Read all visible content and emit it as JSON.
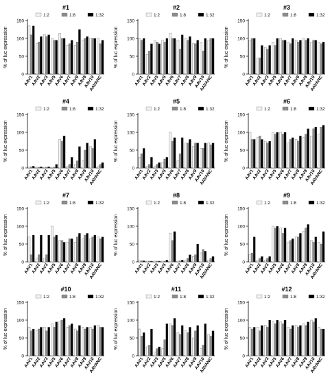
{
  "figure": {
    "ylabel": "% of luc expression",
    "legend": [
      "1:2",
      "1:8",
      "1:32"
    ],
    "series_colors": [
      "#f2f2f2",
      "#8c8c8c",
      "#000000"
    ],
    "categories": [
      "AAV1",
      "AAV2",
      "AAV3",
      "AAV5",
      "AAV6",
      "AAV7",
      "AAV8",
      "AAV9",
      "AAV10",
      "AAVANC"
    ],
    "yticks": [
      "0",
      "50",
      "100",
      "150"
    ]
  },
  "chart_data": [
    {
      "type": "bar",
      "title": "#1",
      "categories": [
        "AAV1",
        "AAV2",
        "AAV3",
        "AAV5",
        "AAV6",
        "AAV7",
        "AAV8",
        "AAV9",
        "AAV10",
        "AAVANC"
      ],
      "ylim": [
        0,
        150
      ],
      "series": [
        {
          "name": "1:2",
          "values": [
            135,
            85,
            110,
            100,
            115,
            80,
            80,
            95,
            100,
            100
          ]
        },
        {
          "name": "1:8",
          "values": [
            110,
            90,
            105,
            95,
            100,
            85,
            90,
            100,
            100,
            85
          ]
        },
        {
          "name": "1:32",
          "values": [
            135,
            105,
            110,
            95,
            100,
            95,
            125,
            105,
            100,
            95
          ]
        }
      ]
    },
    {
      "type": "bar",
      "title": "#2",
      "categories": [
        "AAV1",
        "AAV2",
        "AAV3",
        "AAV5",
        "AAV6",
        "AAV7",
        "AAV8",
        "AAV9",
        "AAV10",
        "AAVANC"
      ],
      "ylim": [
        0,
        150
      ],
      "series": [
        {
          "name": "1:2",
          "values": [
            100,
            55,
            95,
            95,
            115,
            95,
            100,
            85,
            90,
            95
          ]
        },
        {
          "name": "1:8",
          "values": [
            95,
            65,
            90,
            90,
            100,
            70,
            95,
            85,
            65,
            100
          ]
        },
        {
          "name": "1:32",
          "values": [
            100,
            85,
            85,
            100,
            100,
            110,
            105,
            95,
            100,
            100
          ]
        }
      ]
    },
    {
      "type": "bar",
      "title": "#3",
      "categories": [
        "AAV1",
        "AAV2",
        "AAV3",
        "AAV5",
        "AAV6",
        "AAV7",
        "AAV8",
        "AAV9",
        "AAV10",
        "AAVANC"
      ],
      "ylim": [
        0,
        150
      ],
      "series": [
        {
          "name": "1:2",
          "values": [
            95,
            45,
            75,
            90,
            100,
            90,
            95,
            100,
            90,
            90
          ]
        },
        {
          "name": "1:8",
          "values": [
            100,
            45,
            70,
            80,
            95,
            85,
            90,
            95,
            95,
            85
          ]
        },
        {
          "name": "1:32",
          "values": [
            100,
            80,
            80,
            100,
            95,
            100,
            95,
            100,
            95,
            90
          ]
        }
      ]
    },
    {
      "type": "bar",
      "title": "#4",
      "categories": [
        "AAV1",
        "AAV2",
        "AAV3",
        "AAV5",
        "AAV6",
        "AAV7",
        "AAV8",
        "AAV9",
        "AAV10",
        "AAVANC"
      ],
      "ylim": [
        0,
        150
      ],
      "series": [
        {
          "name": "1:2",
          "values": [
            3,
            2,
            2,
            2,
            80,
            5,
            10,
            20,
            60,
            5
          ]
        },
        {
          "name": "1:8",
          "values": [
            3,
            2,
            2,
            2,
            75,
            10,
            20,
            50,
            55,
            10
          ]
        },
        {
          "name": "1:32",
          "values": [
            5,
            3,
            3,
            10,
            90,
            30,
            60,
            70,
            80,
            15
          ]
        }
      ]
    },
    {
      "type": "bar",
      "title": "#5",
      "categories": [
        "AAV1",
        "AAV2",
        "AAV3",
        "AAV5",
        "AAV6",
        "AAV7",
        "AAV8",
        "AAV9",
        "AAV10",
        "AAVANC"
      ],
      "ylim": [
        0,
        150
      ],
      "series": [
        {
          "name": "1:2",
          "values": [
            30,
            5,
            5,
            15,
            100,
            20,
            70,
            60,
            55,
            70
          ]
        },
        {
          "name": "1:8",
          "values": [
            40,
            10,
            10,
            25,
            75,
            40,
            70,
            70,
            55,
            65
          ]
        },
        {
          "name": "1:32",
          "values": [
            55,
            30,
            15,
            30,
            85,
            85,
            80,
            70,
            70,
            70
          ]
        }
      ]
    },
    {
      "type": "bar",
      "title": "#6",
      "categories": [
        "AAV1",
        "AAV2",
        "AAV3",
        "AAV5",
        "AAV6",
        "AAV7",
        "AAV8",
        "AAV9",
        "AAV10",
        "AAVANC"
      ],
      "ylim": [
        0,
        150
      ],
      "series": [
        {
          "name": "1:2",
          "values": [
            100,
            85,
            75,
            100,
            100,
            70,
            80,
            85,
            90,
            95
          ]
        },
        {
          "name": "1:8",
          "values": [
            80,
            90,
            70,
            95,
            95,
            80,
            75,
            95,
            110,
            115
          ]
        },
        {
          "name": "1:32",
          "values": [
            80,
            80,
            75,
            100,
            100,
            85,
            90,
            110,
            115,
            120
          ]
        }
      ]
    },
    {
      "type": "bar",
      "title": "#7",
      "categories": [
        "AAV1",
        "AAV2",
        "AAV3",
        "AAV5",
        "AAV6",
        "AAV7",
        "AAV8",
        "AAV9",
        "AAV10",
        "AAVANC"
      ],
      "ylim": [
        0,
        150
      ],
      "series": [
        {
          "name": "1:2",
          "values": [
            70,
            10,
            10,
            100,
            60,
            55,
            55,
            65,
            65,
            70
          ]
        },
        {
          "name": "1:8",
          "values": [
            20,
            20,
            20,
            70,
            60,
            65,
            70,
            75,
            70,
            65
          ]
        },
        {
          "name": "1:32",
          "values": [
            75,
            75,
            75,
            75,
            55,
            65,
            80,
            80,
            75,
            70
          ]
        }
      ]
    },
    {
      "type": "bar",
      "title": "#8",
      "categories": [
        "AAV1",
        "AAV2",
        "AAV3",
        "AAV5",
        "AAV6",
        "AAV7",
        "AAV8",
        "AAV9",
        "AAV10",
        "AAVANC"
      ],
      "ylim": [
        0,
        150
      ],
      "series": [
        {
          "name": "1:2",
          "values": [
            3,
            2,
            2,
            2,
            80,
            2,
            5,
            15,
            25,
            5
          ]
        },
        {
          "name": "1:8",
          "values": [
            3,
            2,
            2,
            2,
            60,
            3,
            10,
            20,
            35,
            10
          ]
        },
        {
          "name": "1:32",
          "values": [
            3,
            2,
            2,
            5,
            85,
            5,
            20,
            50,
            30,
            15
          ]
        }
      ]
    },
    {
      "type": "bar",
      "title": "#9",
      "categories": [
        "AAV1",
        "AAV2",
        "AAV3",
        "AAV5",
        "AAV6",
        "AAV7",
        "AAV8",
        "AAV9",
        "AAV10",
        "AAVANC"
      ],
      "ylim": [
        0,
        150
      ],
      "series": [
        {
          "name": "1:2",
          "values": [
            20,
            5,
            5,
            100,
            95,
            55,
            70,
            85,
            60,
            55
          ]
        },
        {
          "name": "1:8",
          "values": [
            25,
            10,
            10,
            95,
            80,
            60,
            70,
            95,
            55,
            50
          ]
        },
        {
          "name": "1:32",
          "values": [
            70,
            15,
            15,
            100,
            95,
            65,
            80,
            105,
            70,
            85
          ]
        }
      ]
    },
    {
      "type": "bar",
      "title": "#10",
      "categories": [
        "AAV1",
        "AAV2",
        "AAV3",
        "AAV5",
        "AAV6",
        "AAV7",
        "AAV8",
        "AAV9",
        "AAV10",
        "AAVANC"
      ],
      "ylim": [
        0,
        150
      ],
      "series": [
        {
          "name": "1:2",
          "values": [
            80,
            70,
            80,
            90,
            95,
            80,
            75,
            80,
            80,
            85
          ]
        },
        {
          "name": "1:8",
          "values": [
            70,
            75,
            70,
            80,
            100,
            85,
            70,
            75,
            75,
            80
          ]
        },
        {
          "name": "1:32",
          "values": [
            75,
            80,
            80,
            95,
            105,
            90,
            85,
            80,
            85,
            80
          ]
        }
      ]
    },
    {
      "type": "bar",
      "title": "#11",
      "categories": [
        "AAV1",
        "AAV2",
        "AAV3",
        "AAV5",
        "AAV6",
        "AAV7",
        "AAV8",
        "AAV9",
        "AAV10",
        "AAVANC"
      ],
      "ylim": [
        0,
        150
      ],
      "series": [
        {
          "name": "1:2",
          "values": [
            75,
            25,
            10,
            20,
            90,
            65,
            70,
            50,
            20,
            60
          ]
        },
        {
          "name": "1:8",
          "values": [
            55,
            30,
            20,
            45,
            85,
            60,
            65,
            70,
            30,
            55
          ]
        },
        {
          "name": "1:32",
          "values": [
            65,
            75,
            25,
            90,
            105,
            85,
            80,
            85,
            90,
            70
          ]
        }
      ]
    },
    {
      "type": "bar",
      "title": "#12",
      "categories": [
        "AAV1",
        "AAV2",
        "AAV3",
        "AAV5",
        "AAV6",
        "AAV7",
        "AAV8",
        "AAV9",
        "AAV10",
        "AAVANC"
      ],
      "ylim": [
        0,
        150
      ],
      "series": [
        {
          "name": "1:2",
          "values": [
            80,
            80,
            85,
            95,
            95,
            80,
            85,
            90,
            100,
            80
          ]
        },
        {
          "name": "1:8",
          "values": [
            75,
            70,
            80,
            90,
            90,
            75,
            80,
            85,
            95,
            75
          ]
        },
        {
          "name": "1:32",
          "values": [
            80,
            85,
            100,
            100,
            100,
            85,
            85,
            95,
            105,
            75
          ]
        }
      ]
    }
  ]
}
